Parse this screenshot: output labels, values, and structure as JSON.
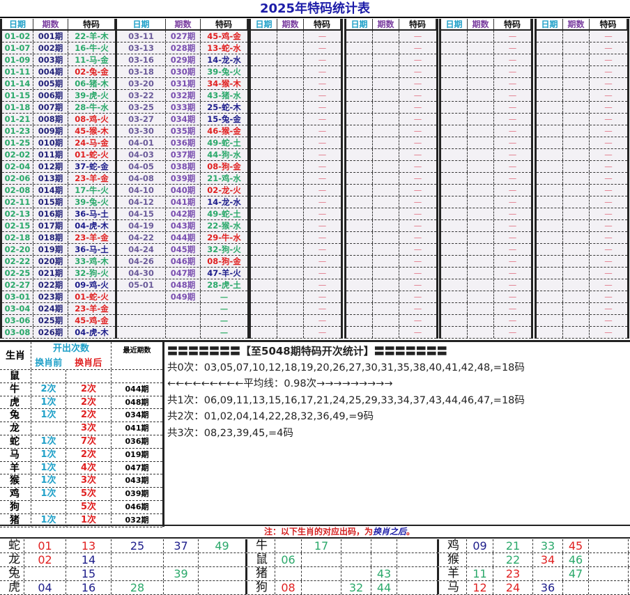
{
  "title": "2025年特码统计表",
  "colors": {
    "red": "#e02020",
    "green": "#2aa86a",
    "blue": "#1c1c8a",
    "dash_red": "#e07080",
    "dash_green": "#4ab67a"
  },
  "headers": {
    "date": "日期",
    "period": "期数",
    "code": "特码"
  },
  "block1": [
    [
      "01-02",
      "001期",
      "22-羊-木",
      "green"
    ],
    [
      "01-07",
      "002期",
      "16-牛-火",
      "green"
    ],
    [
      "01-09",
      "003期",
      "11-马-金",
      "green"
    ],
    [
      "01-11",
      "004期",
      "02-兔-金",
      "red"
    ],
    [
      "01-14",
      "005期",
      "06-猪-木",
      "green"
    ],
    [
      "01-15",
      "006期",
      "39-虎-火",
      "green"
    ],
    [
      "01-18",
      "007期",
      "28-牛-水",
      "green"
    ],
    [
      "01-21",
      "008期",
      "08-鸡-火",
      "red"
    ],
    [
      "01-23",
      "009期",
      "45-猴-木",
      "red"
    ],
    [
      "01-25",
      "010期",
      "24-马-金",
      "red"
    ],
    [
      "02-02",
      "011期",
      "01-蛇-火",
      "red"
    ],
    [
      "02-04",
      "012期",
      "37-蛇-金",
      "blue"
    ],
    [
      "02-06",
      "013期",
      "23-羊-金",
      "red"
    ],
    [
      "02-08",
      "014期",
      "17-牛-火",
      "green"
    ],
    [
      "02-11",
      "015期",
      "39-兔-火",
      "green"
    ],
    [
      "02-13",
      "016期",
      "36-马-土",
      "blue"
    ],
    [
      "02-15",
      "017期",
      "04-虎-木",
      "blue"
    ],
    [
      "02-18",
      "018期",
      "23-羊-金",
      "red"
    ],
    [
      "02-20",
      "019期",
      "36-马-土",
      "blue"
    ],
    [
      "02-22",
      "020期",
      "33-鸡-木",
      "green"
    ],
    [
      "02-25",
      "021期",
      "32-狗-火",
      "green"
    ],
    [
      "02-27",
      "022期",
      "09-鸡-火",
      "blue"
    ],
    [
      "03-01",
      "023期",
      "01-蛇-火",
      "red"
    ],
    [
      "03-04",
      "024期",
      "23-羊-金",
      "red"
    ],
    [
      "03-06",
      "025期",
      "45-鸡-金",
      "red"
    ],
    [
      "03-08",
      "026期",
      "04-虎-木",
      "blue"
    ]
  ],
  "block2": [
    [
      "03-11",
      "027期",
      "45-鸡-金",
      "red"
    ],
    [
      "03-13",
      "028期",
      "13-蛇-水",
      "red"
    ],
    [
      "03-16",
      "029期",
      "14-龙-水",
      "blue"
    ],
    [
      "03-18",
      "030期",
      "39-兔-火",
      "green"
    ],
    [
      "03-20",
      "031期",
      "34-猴-木",
      "red"
    ],
    [
      "03-22",
      "032期",
      "43-猪-水",
      "green"
    ],
    [
      "03-25",
      "033期",
      "25-蛇-木",
      "blue"
    ],
    [
      "03-27",
      "034期",
      "15-兔-金",
      "blue"
    ],
    [
      "03-30",
      "035期",
      "46-猴-金",
      "red"
    ],
    [
      "04-01",
      "036期",
      "49-蛇-土",
      "green"
    ],
    [
      "04-03",
      "037期",
      "44-狗-水",
      "green"
    ],
    [
      "04-05",
      "038期",
      "08-狗-金",
      "red"
    ],
    [
      "04-08",
      "039期",
      "21-鸡-水",
      "green"
    ],
    [
      "04-10",
      "040期",
      "02-龙-火",
      "red"
    ],
    [
      "04-12",
      "041期",
      "14-龙-水",
      "blue"
    ],
    [
      "04-15",
      "042期",
      "49-蛇-土",
      "green"
    ],
    [
      "04-19",
      "043期",
      "22-猴-水",
      "green"
    ],
    [
      "04-22",
      "044期",
      "29-牛-水",
      "red"
    ],
    [
      "04-24",
      "045期",
      "32-狗-火",
      "green"
    ],
    [
      "04-26",
      "046期",
      "08-狗-金",
      "red"
    ],
    [
      "04-30",
      "047期",
      "47-羊-火",
      "blue"
    ],
    [
      "05-01",
      "048期",
      "28-虎-土",
      "green"
    ],
    [
      "",
      "049期",
      "—",
      "dash_green"
    ],
    [
      "",
      "",
      "—",
      "dash_green"
    ],
    [
      "",
      "",
      "—",
      "dash_green"
    ],
    [
      "",
      "",
      "—",
      "dash_green"
    ]
  ],
  "empty_code": "—",
  "zodiac_table": {
    "h_zodiac": "生肖",
    "h_count": "开出次数",
    "h_before": "换肖前",
    "h_after": "换肖后",
    "h_recent": "最近期数",
    "rows": [
      [
        "鼠",
        "",
        "",
        ""
      ],
      [
        "牛",
        "2次",
        "2次",
        "044期"
      ],
      [
        "虎",
        "1次",
        "2次",
        "048期"
      ],
      [
        "兔",
        "1次",
        "2次",
        "034期"
      ],
      [
        "龙",
        "",
        "3次",
        "041期"
      ],
      [
        "蛇",
        "1次",
        "7次",
        "036期"
      ],
      [
        "马",
        "1次",
        "2次",
        "019期"
      ],
      [
        "羊",
        "1次",
        "4次",
        "047期"
      ],
      [
        "猴",
        "1次",
        "3次",
        "043期"
      ],
      [
        "鸡",
        "1次",
        "5次",
        "039期"
      ],
      [
        "狗",
        "",
        "5次",
        "046期"
      ],
      [
        "猪",
        "1次",
        "1次",
        "032期"
      ]
    ]
  },
  "stats": [
    "〓〓〓〓〓〓〓【至5048期特码开次统计】〓〓〓〓〓〓〓",
    "共0次：03,05,07,10,12,18,19,20,26,27,30,31,35,38,40,41,42,48,=18码",
    "←←←←←←←←←平均线：0.98次→→→→→→→→→",
    "共1次：06,09,11,13,15,16,17,21,24,25,29,33,34,37,43,44,46,47,=18码",
    "共2次：01,02,04,14,22,28,32,36,49,=9码",
    "共3次：08,23,39,45,=4码"
  ],
  "note": {
    "prefix": "注：以下生肖的对应出码，为",
    "emph": "换肖之后",
    "suffix": "。"
  },
  "zodiac_grid": [
    [
      [
        "蛇",
        [
          [
            "01",
            "red"
          ],
          [
            "13",
            "red"
          ],
          [
            "25",
            "blue"
          ],
          [
            "37",
            "blue"
          ],
          [
            "49",
            "green"
          ]
        ]
      ],
      [
        "牛",
        [
          [
            "",
            ""
          ],
          [
            "17",
            "green"
          ],
          [
            "",
            ""
          ],
          [
            "",
            ""
          ],
          [
            "",
            ""
          ]
        ]
      ],
      [
        "鸡",
        [
          [
            "09",
            "blue"
          ],
          [
            "21",
            "green"
          ],
          [
            "33",
            "green"
          ],
          [
            "45",
            "red"
          ],
          [
            "",
            ""
          ]
        ]
      ]
    ],
    [
      [
        "龙",
        [
          [
            "02",
            "red"
          ],
          [
            "14",
            "blue"
          ],
          [
            "",
            ""
          ],
          [
            "",
            ""
          ],
          [
            "",
            ""
          ]
        ]
      ],
      [
        "鼠",
        [
          [
            "06",
            "green"
          ],
          [
            "",
            ""
          ],
          [
            "",
            ""
          ],
          [
            "",
            ""
          ],
          [
            "",
            ""
          ]
        ]
      ],
      [
        "猴",
        [
          [
            "",
            ""
          ],
          [
            "22",
            "green"
          ],
          [
            "34",
            "red"
          ],
          [
            "46",
            "green"
          ],
          [
            "",
            ""
          ]
        ]
      ]
    ],
    [
      [
        "兔",
        [
          [
            "",
            ""
          ],
          [
            "15",
            "blue"
          ],
          [
            "",
            ""
          ],
          [
            "39",
            "green"
          ],
          [
            "",
            ""
          ]
        ]
      ],
      [
        "猪",
        [
          [
            "",
            ""
          ],
          [
            "",
            ""
          ],
          [
            "",
            ""
          ],
          [
            "43",
            "green"
          ],
          [
            "",
            ""
          ]
        ]
      ],
      [
        "羊",
        [
          [
            "11",
            "green"
          ],
          [
            "23",
            "red"
          ],
          [
            "",
            ""
          ],
          [
            "47",
            "green"
          ],
          [
            "",
            ""
          ]
        ]
      ]
    ],
    [
      [
        "虎",
        [
          [
            "04",
            "blue"
          ],
          [
            "16",
            "blue"
          ],
          [
            "28",
            "green"
          ],
          [
            "",
            ""
          ],
          [
            "",
            ""
          ]
        ]
      ],
      [
        "狗",
        [
          [
            "08",
            "red"
          ],
          [
            "",
            ""
          ],
          [
            "32",
            "green"
          ],
          [
            "44",
            "green"
          ],
          [
            "",
            ""
          ]
        ]
      ],
      [
        "马",
        [
          [
            "12",
            "red"
          ],
          [
            "24",
            "red"
          ],
          [
            "36",
            "blue"
          ],
          [
            "",
            ""
          ],
          [
            "",
            ""
          ]
        ]
      ]
    ]
  ]
}
